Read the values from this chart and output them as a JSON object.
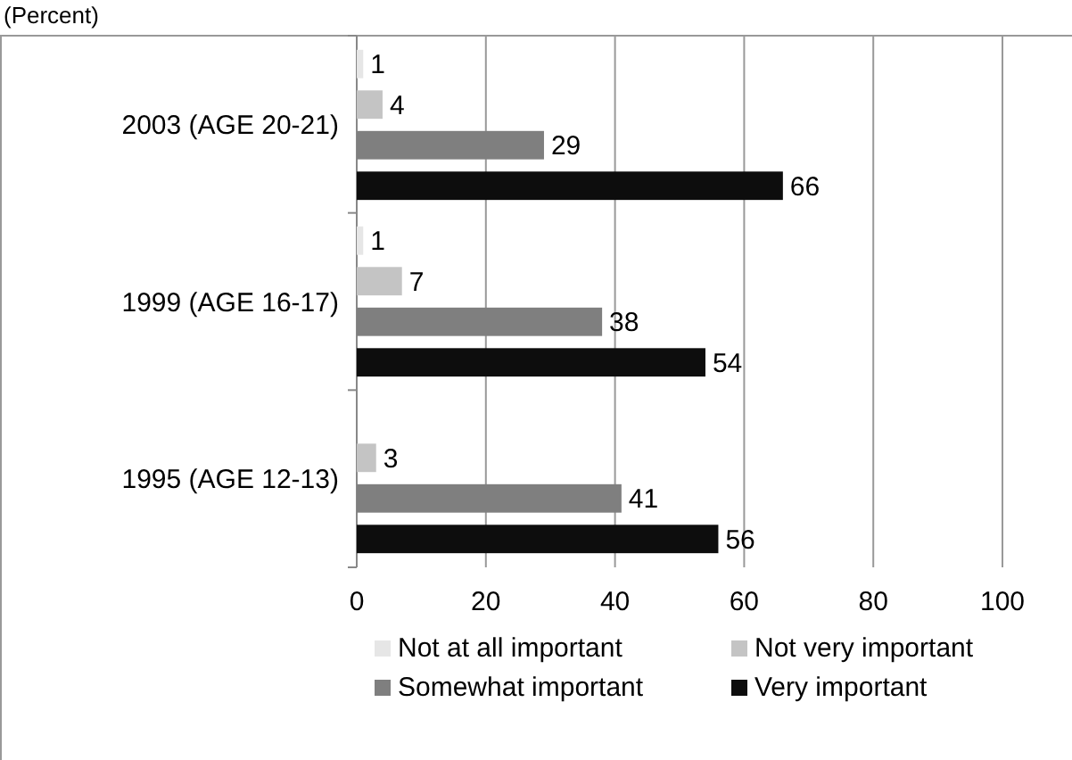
{
  "chart_data": {
    "type": "bar",
    "orientation": "horizontal",
    "annotations": [
      "(Percent)"
    ],
    "categories": [
      "2003  (AGE 20-21)",
      "1999  (AGE 16-17)",
      "1995  (AGE 12-13)"
    ],
    "series": [
      {
        "name": "Not at all important",
        "color": "#e6e6e6",
        "values": [
          1,
          1,
          null
        ]
      },
      {
        "name": "Not very important",
        "color": "#c4c4c4",
        "values": [
          4,
          7,
          3
        ]
      },
      {
        "name": "Somewhat important",
        "color": "#7f7f7f",
        "values": [
          29,
          38,
          41
        ]
      },
      {
        "name": "Very important",
        "color": "#0d0d0d",
        "values": [
          66,
          54,
          56
        ]
      }
    ],
    "xlim": [
      0,
      100
    ],
    "xticks": [
      0,
      20,
      40,
      60,
      80,
      100
    ],
    "grid": "x",
    "legend": "bottom",
    "data_labels": true
  }
}
